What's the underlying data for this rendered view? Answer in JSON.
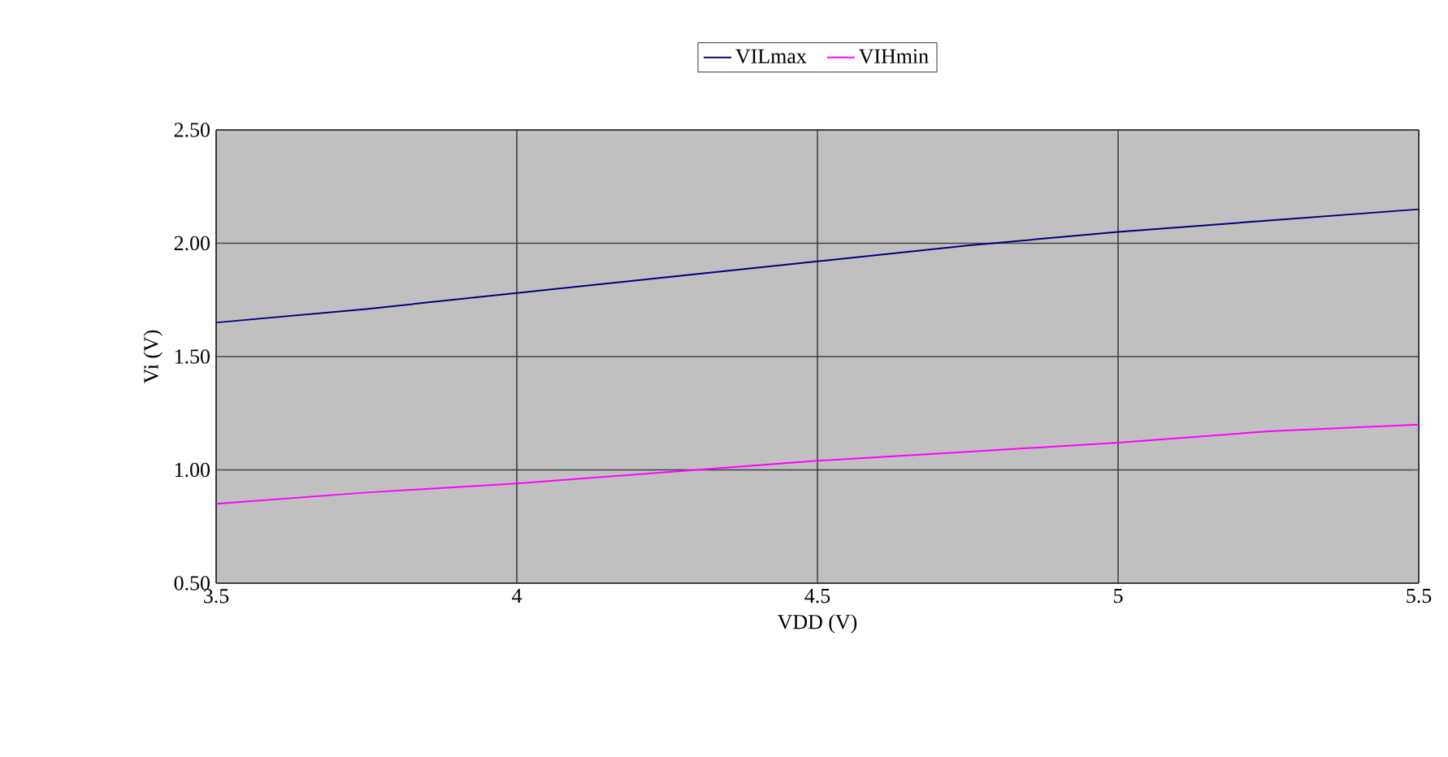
{
  "chart_data": {
    "type": "line",
    "xlabel": "VDD (V)",
    "ylabel": "Vi (V)",
    "xlim": [
      3.5,
      5.5
    ],
    "xticks": [
      3.5,
      4,
      4.5,
      5,
      5.5
    ],
    "ylim": [
      0.5,
      2.5
    ],
    "yticks": [
      {
        "value": 0.5,
        "label": "0.50"
      },
      {
        "value": 1,
        "label": "1.00"
      },
      {
        "value": 1.5,
        "label": "1.50"
      },
      {
        "value": 2,
        "label": "2.00"
      },
      {
        "value": 2.5,
        "label": "2.50"
      }
    ],
    "grid": true,
    "legend": "top",
    "marker": "none",
    "line_style": "solid",
    "x": [
      3.5,
      3.75,
      4.0,
      4.25,
      4.5,
      4.75,
      5.0,
      5.25,
      5.5
    ],
    "series": [
      {
        "name": "VILmax",
        "color": "#000080",
        "values": [
          1.65,
          1.71,
          1.78,
          1.85,
          1.92,
          1.99,
          2.05,
          2.1,
          2.15
        ]
      },
      {
        "name": "VIHmin",
        "color": "#ff00ff",
        "values": [
          0.85,
          0.9,
          0.94,
          0.99,
          1.04,
          1.08,
          1.12,
          1.17,
          1.2
        ]
      }
    ]
  }
}
